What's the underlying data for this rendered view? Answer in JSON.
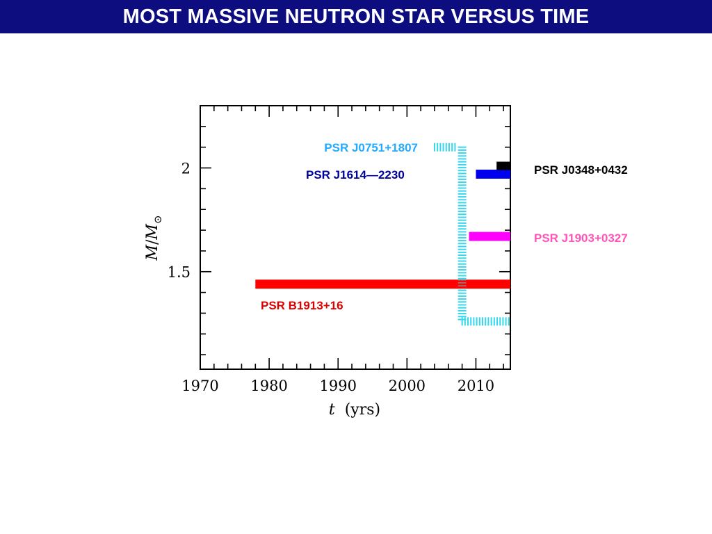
{
  "header": {
    "title": "MOST MASSIVE NEUTRON STAR VERSUS TIME"
  },
  "colors": {
    "header_bg": "#0d0d80",
    "header_text": "#ffffff"
  },
  "chart_data": {
    "type": "bar",
    "orientation": "horizontal-intervals",
    "title": "",
    "xlabel_var": "t",
    "xlabel_unit": "(yrs)",
    "ylabel_var": "M",
    "ylabel_sub": "⊙",
    "xlim": [
      1970,
      2015
    ],
    "ylim": [
      1.03,
      2.3
    ],
    "x_ticks": [
      1970,
      1980,
      1990,
      2000,
      2010
    ],
    "y_ticks": [
      1.5,
      2
    ],
    "y_tick_labels": [
      "1.5",
      "2"
    ],
    "series": [
      {
        "name": "PSR B1913+16",
        "x_start": 1978,
        "x_end": 2015,
        "mass": 1.44,
        "color": "#ff0000",
        "label_color": "#dd0000",
        "style": "solid"
      },
      {
        "name": "PSR J1903+0327",
        "x_start": 2009,
        "x_end": 2015,
        "mass": 1.67,
        "color": "#ff00ff",
        "label_color": "#ff55bb",
        "style": "solid"
      },
      {
        "name": "PSR J1614—2230",
        "x_start": 2010,
        "x_end": 2015,
        "mass": 1.97,
        "color": "#0000ee",
        "label_color": "#000099",
        "style": "solid"
      },
      {
        "name": "PSR J0348+0432",
        "x_start": 2013,
        "x_end": 2015,
        "mass": 2.01,
        "color": "#000000",
        "label_color": "#000000",
        "style": "solid"
      },
      {
        "name": "PSR J0751+1807",
        "color": "#33d8f0",
        "label_color": "#22aaff",
        "style": "hatched",
        "segments": [
          {
            "x_start": 2004,
            "x_end": 2007,
            "mass": 2.1
          },
          {
            "x": 2008,
            "mass_start": 2.1,
            "mass_end": 1.26
          },
          {
            "x_start": 2008,
            "x_end": 2015,
            "mass": 1.26
          }
        ]
      }
    ]
  }
}
